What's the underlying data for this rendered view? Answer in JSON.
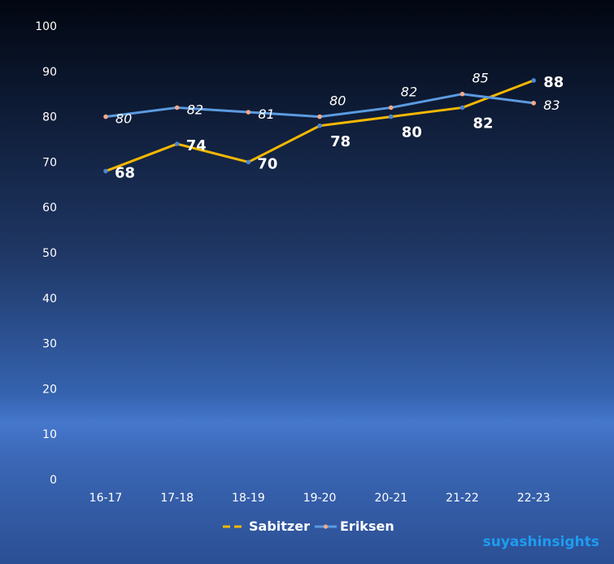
{
  "chart_data": {
    "type": "line",
    "categories": [
      "16-17",
      "17-18",
      "18-19",
      "19-20",
      "20-21",
      "21-22",
      "22-23"
    ],
    "series": [
      {
        "name": "Sabitzer",
        "values": [
          68,
          74,
          70,
          78,
          80,
          82,
          88
        ],
        "color": "#f5b800",
        "marker": "#4a86d6"
      },
      {
        "name": "Eriksen",
        "values": [
          80,
          82,
          81,
          80,
          82,
          85,
          83
        ],
        "color": "#5b9be0",
        "marker": "#f4a98b"
      }
    ],
    "yticks": [
      "0",
      "10",
      "20",
      "30",
      "40",
      "50",
      "60",
      "70",
      "80",
      "90",
      "100"
    ],
    "ylim": [
      0,
      100
    ],
    "grid": false,
    "legend": "bottom"
  },
  "watermark": "suyashinsights"
}
